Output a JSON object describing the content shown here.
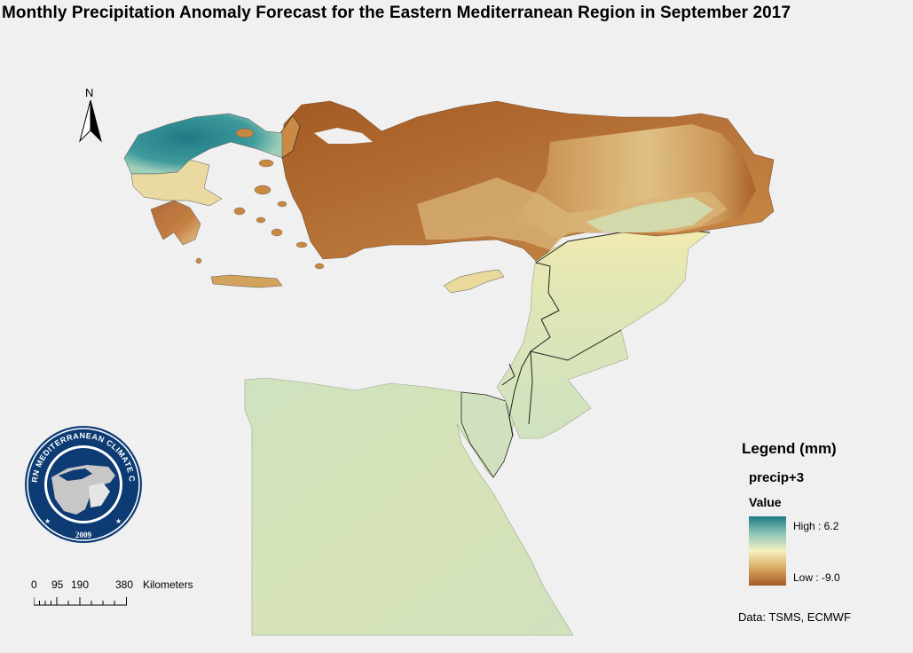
{
  "title": "Monthly Precipitation Anomaly Forecast for the Eastern Mediterranean Region in September 2017",
  "north_arrow": {
    "label": "N",
    "icon": "north-arrow-icon"
  },
  "logo": {
    "ring_text": "EASTERN MEDITERRANEAN CLIMATE CENTRE",
    "year": "2009",
    "colors": {
      "navy": "#0d3b73",
      "map_gray": "#c7c7c7"
    }
  },
  "scale_bar": {
    "ticks": [
      "0",
      "95",
      "190",
      "380"
    ],
    "unit": "Kilometers"
  },
  "legend": {
    "title": "Legend (mm)",
    "layer": "precip+3",
    "field": "Value",
    "high": "High : 6.2",
    "low": "Low : -9.0",
    "colors": {
      "high": "#1f7a86",
      "mid_high": "#8cc7b9",
      "neutral": "#f6f1bd",
      "mid_low": "#d9a862",
      "low": "#a45a22"
    }
  },
  "credit": "Data:  TSMS, ECMWF",
  "colors": {
    "background": "#f0f0f0",
    "neutral_land": "#d6e2b8",
    "border": "#222222"
  }
}
